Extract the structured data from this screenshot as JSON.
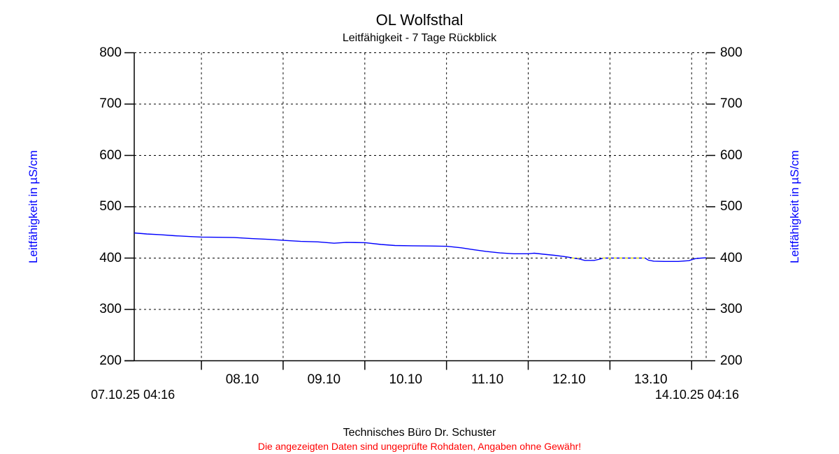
{
  "chart_data": {
    "type": "line",
    "title": "OL Wolfsthal",
    "subtitle": "Leitfähigkeit - 7 Tage Rückblick",
    "ylabel_left": "Leitfähigkeit in µS/cm",
    "ylabel_right": "Leitfähigkeit in µS/cm",
    "ylim": [
      200,
      800
    ],
    "yticks": [
      800,
      700,
      600,
      500,
      400,
      300,
      200
    ],
    "x_start_label": "07.10.25 04:16",
    "x_end_label": "14.10.25 04:16",
    "x_day_labels": [
      "08.10",
      "09.10",
      "10.10",
      "11.10",
      "12.10",
      "13.10"
    ],
    "x_range_hours": 168,
    "first_midnight_offset_hours": 19.733,
    "grid": "dashed",
    "legend": "none",
    "line_color": "#0000ff",
    "grid_color": "#000000",
    "overlap_dash_color": "#ffff00",
    "series": [
      {
        "name": "Leitfähigkeit",
        "unit": "µS/cm",
        "points": [
          [
            0,
            449
          ],
          [
            3.7,
            447
          ],
          [
            7.8,
            445.5
          ],
          [
            11.9,
            443.5
          ],
          [
            16.0,
            442
          ],
          [
            19.7,
            441
          ],
          [
            24.2,
            440.5
          ],
          [
            29.4,
            440
          ],
          [
            34.5,
            438
          ],
          [
            39.6,
            436.5
          ],
          [
            43.7,
            434.5
          ],
          [
            48.9,
            432.5
          ],
          [
            54.0,
            431.5
          ],
          [
            58.7,
            429
          ],
          [
            62.2,
            430.5
          ],
          [
            67.8,
            430
          ],
          [
            72.5,
            426.5
          ],
          [
            76.6,
            424.5
          ],
          [
            81.7,
            424
          ],
          [
            86.9,
            423.5
          ],
          [
            91.8,
            423
          ],
          [
            96.1,
            420
          ],
          [
            99.6,
            416.5
          ],
          [
            103.3,
            413
          ],
          [
            107.4,
            410
          ],
          [
            111.5,
            408.5
          ],
          [
            115.8,
            408.5
          ],
          [
            117.5,
            409.5
          ],
          [
            120.3,
            407.5
          ],
          [
            123.4,
            405.5
          ],
          [
            126.9,
            402.5
          ],
          [
            129.0,
            400
          ],
          [
            130.6,
            398.5
          ],
          [
            132.3,
            395.5
          ],
          [
            135.1,
            395.5
          ],
          [
            136.8,
            398
          ],
          [
            137.8,
            400
          ],
          [
            150.1,
            400
          ],
          [
            151.0,
            396
          ],
          [
            152.6,
            394
          ],
          [
            155.7,
            393.5
          ],
          [
            159.8,
            393.5
          ],
          [
            162.9,
            395
          ],
          [
            164.9,
            399
          ],
          [
            166.6,
            400
          ],
          [
            168.0,
            400.5
          ]
        ]
      }
    ],
    "gridline_overlap_segments_hours": [
      [
        128.5,
        130.6
      ],
      [
        137.6,
        150.3
      ]
    ],
    "overlap_value": 400
  },
  "footer": {
    "company": "Technisches Büro Dr. Schuster",
    "disclaimer": "Die angezeigten Daten sind ungeprüfte Rohdaten, Angaben ohne Gewähr!"
  }
}
